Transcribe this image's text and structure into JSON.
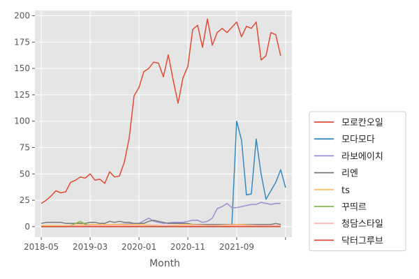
{
  "chart_data": {
    "type": "line",
    "title": "",
    "xlabel": "Month",
    "ylabel": "",
    "ylim": [
      -10,
      205
    ],
    "grid": true,
    "legend_position": "right",
    "x_ticks": [
      "2018-05",
      "2019-03",
      "2020-01",
      "2020-11",
      "2021-09",
      ""
    ],
    "y_ticks": [
      0,
      25,
      50,
      75,
      100,
      125,
      150,
      175,
      200
    ],
    "series": [
      {
        "name": "모로칸오일",
        "color": "#E24A33",
        "points": [
          [
            0,
            22
          ],
          [
            1,
            25
          ],
          [
            2,
            29
          ],
          [
            3,
            34
          ],
          [
            4,
            32
          ],
          [
            5,
            33
          ],
          [
            6,
            42
          ],
          [
            7,
            44
          ],
          [
            8,
            47
          ],
          [
            9,
            46
          ],
          [
            10,
            50
          ],
          [
            11,
            44
          ],
          [
            12,
            45
          ],
          [
            13,
            41
          ],
          [
            14,
            52
          ],
          [
            15,
            47
          ],
          [
            16,
            48
          ],
          [
            17,
            61
          ],
          [
            18,
            84
          ],
          [
            19,
            124
          ],
          [
            20,
            132
          ],
          [
            21,
            147
          ],
          [
            22,
            150
          ],
          [
            23,
            156
          ],
          [
            24,
            155
          ],
          [
            25,
            142
          ],
          [
            26,
            163
          ],
          [
            27,
            139
          ],
          [
            28,
            117
          ],
          [
            29,
            141
          ],
          [
            30,
            152
          ],
          [
            31,
            187
          ],
          [
            32,
            191
          ],
          [
            33,
            170
          ],
          [
            34,
            197
          ],
          [
            35,
            172
          ],
          [
            36,
            184
          ],
          [
            37,
            188
          ],
          [
            38,
            184
          ],
          [
            39,
            189
          ],
          [
            40,
            194
          ],
          [
            41,
            180
          ],
          [
            42,
            190
          ],
          [
            43,
            188
          ],
          [
            44,
            194
          ],
          [
            45,
            158
          ],
          [
            46,
            162
          ],
          [
            47,
            184
          ],
          [
            48,
            182
          ],
          [
            49,
            162
          ]
        ]
      },
      {
        "name": "모다모다",
        "color": "#348ABD",
        "points": [
          [
            0,
            0
          ],
          [
            38,
            0
          ],
          [
            39,
            0
          ],
          [
            40,
            100
          ],
          [
            41,
            82
          ],
          [
            42,
            30
          ],
          [
            43,
            31
          ],
          [
            44,
            83
          ],
          [
            45,
            50
          ],
          [
            46,
            26
          ],
          [
            47,
            34
          ],
          [
            48,
            42
          ],
          [
            49,
            54
          ],
          [
            50,
            37
          ]
        ]
      },
      {
        "name": "라보에이치",
        "color": "#988ED5",
        "points": [
          [
            0,
            0
          ],
          [
            5,
            0
          ],
          [
            10,
            1
          ],
          [
            15,
            2
          ],
          [
            20,
            3
          ],
          [
            22,
            8
          ],
          [
            23,
            5
          ],
          [
            25,
            3
          ],
          [
            27,
            4
          ],
          [
            29,
            4
          ],
          [
            30,
            5
          ],
          [
            31,
            6
          ],
          [
            32,
            6
          ],
          [
            33,
            4
          ],
          [
            34,
            5
          ],
          [
            35,
            8
          ],
          [
            36,
            17
          ],
          [
            37,
            19
          ],
          [
            38,
            22
          ],
          [
            39,
            18
          ],
          [
            40,
            18
          ],
          [
            41,
            19
          ],
          [
            42,
            20
          ],
          [
            43,
            21
          ],
          [
            44,
            21
          ],
          [
            45,
            23
          ],
          [
            46,
            22
          ],
          [
            47,
            21
          ],
          [
            48,
            22
          ],
          [
            49,
            22
          ]
        ]
      },
      {
        "name": "리엔",
        "color": "#777777",
        "points": [
          [
            0,
            3
          ],
          [
            1,
            4
          ],
          [
            2,
            4
          ],
          [
            3,
            4
          ],
          [
            4,
            4
          ],
          [
            5,
            3
          ],
          [
            6,
            3
          ],
          [
            7,
            3
          ],
          [
            8,
            3
          ],
          [
            9,
            3
          ],
          [
            10,
            4
          ],
          [
            11,
            4
          ],
          [
            12,
            3
          ],
          [
            13,
            3
          ],
          [
            14,
            5
          ],
          [
            15,
            4
          ],
          [
            16,
            5
          ],
          [
            17,
            4
          ],
          [
            18,
            4
          ],
          [
            19,
            3
          ],
          [
            20,
            3
          ],
          [
            21,
            3
          ],
          [
            22,
            5
          ],
          [
            23,
            6
          ],
          [
            24,
            5
          ],
          [
            25,
            4
          ],
          [
            26,
            3
          ],
          [
            27,
            3
          ],
          [
            28,
            3
          ],
          [
            29,
            3
          ],
          [
            30,
            3
          ],
          [
            31,
            2
          ],
          [
            32,
            2
          ],
          [
            33,
            2
          ],
          [
            34,
            2
          ],
          [
            35,
            2
          ],
          [
            36,
            2
          ],
          [
            37,
            2
          ],
          [
            38,
            2
          ],
          [
            39,
            2
          ],
          [
            40,
            2
          ],
          [
            41,
            2
          ],
          [
            42,
            2
          ],
          [
            43,
            2
          ],
          [
            44,
            2
          ],
          [
            45,
            2
          ],
          [
            46,
            2
          ],
          [
            47,
            2
          ],
          [
            48,
            3
          ],
          [
            49,
            2
          ]
        ]
      },
      {
        "name": "ts",
        "color": "#FBC15E",
        "points": [
          [
            0,
            1
          ],
          [
            5,
            1
          ],
          [
            10,
            2
          ],
          [
            15,
            2
          ],
          [
            20,
            2
          ],
          [
            25,
            1
          ],
          [
            30,
            2
          ],
          [
            35,
            1
          ],
          [
            40,
            2
          ],
          [
            45,
            1
          ],
          [
            49,
            1
          ]
        ]
      },
      {
        "name": "꾸띄르",
        "color": "#8EBA42",
        "points": [
          [
            0,
            0
          ],
          [
            5,
            0
          ],
          [
            6,
            1
          ],
          [
            7,
            3
          ],
          [
            8,
            5
          ],
          [
            9,
            2
          ],
          [
            10,
            1
          ],
          [
            12,
            0
          ],
          [
            20,
            0
          ],
          [
            30,
            0
          ],
          [
            40,
            0
          ],
          [
            49,
            0
          ]
        ]
      },
      {
        "name": "청담스타일",
        "color": "#FFB5B8",
        "points": [
          [
            0,
            0
          ],
          [
            10,
            1
          ],
          [
            20,
            1
          ],
          [
            30,
            1
          ],
          [
            40,
            1
          ],
          [
            49,
            1
          ]
        ]
      },
      {
        "name": "닥터그루브",
        "color": "#E24A33",
        "points": [
          [
            0,
            0
          ],
          [
            10,
            0
          ],
          [
            20,
            0
          ],
          [
            30,
            0
          ],
          [
            40,
            0
          ],
          [
            49,
            0
          ]
        ]
      }
    ]
  }
}
